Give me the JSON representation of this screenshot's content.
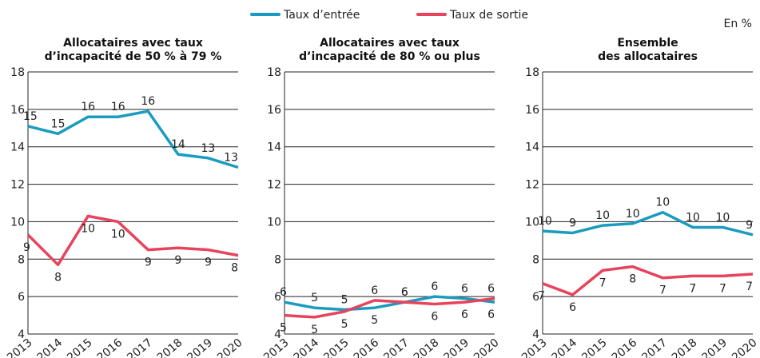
{
  "note": "En %",
  "chart_data": [
    {
      "type": "line",
      "title": "Allocataires avec taux\nd’incapacité de 50 % à 79 %",
      "categories": [
        "2013",
        "2014",
        "2015",
        "2016",
        "2017",
        "2018",
        "2019",
        "2020"
      ],
      "ylim": [
        4,
        18
      ],
      "yticks": [
        4,
        6,
        8,
        10,
        12,
        14,
        16,
        18
      ],
      "grid": true,
      "series": [
        {
          "name": "Taux d’entrée",
          "color": "#1a9bbf",
          "values": [
            15.1,
            14.7,
            15.6,
            15.6,
            15.9,
            13.6,
            13.4,
            12.9
          ],
          "value_labels": [
            "15",
            "15",
            "16",
            "16",
            "16",
            "14",
            "13",
            "13"
          ]
        },
        {
          "name": "Taux de sortie",
          "color": "#e8435c",
          "values": [
            9.3,
            7.7,
            10.3,
            10.0,
            8.5,
            8.6,
            8.5,
            8.2
          ],
          "value_labels": [
            "9",
            "8",
            "10",
            "10",
            "9",
            "9",
            "9",
            "8"
          ]
        }
      ]
    },
    {
      "type": "line",
      "title": "Allocataires avec taux\nd’incapacité de 80 % ou plus",
      "categories": [
        "2013",
        "2014",
        "2015",
        "2016",
        "2017",
        "2018",
        "2019",
        "2020"
      ],
      "ylim": [
        4,
        18
      ],
      "yticks": [
        4,
        6,
        8,
        10,
        12,
        14,
        16,
        18
      ],
      "grid": true,
      "series": [
        {
          "color": "#1a9bbf",
          "values": [
            5.7,
            5.4,
            5.3,
            5.4,
            5.7,
            6.0,
            5.9,
            5.7
          ],
          "value_labels": [
            "6",
            "5",
            "5",
            "5",
            "6",
            "6",
            "6",
            "6"
          ]
        },
        {
          "color": "#e8435c",
          "values": [
            5.0,
            4.9,
            5.2,
            5.8,
            5.7,
            5.6,
            5.7,
            5.9
          ],
          "value_labels": [
            "5",
            "5",
            "5",
            "6",
            "6",
            "6",
            "6",
            "6"
          ]
        }
      ]
    },
    {
      "type": "line",
      "title": "Ensemble\ndes allocataires",
      "categories": [
        "2013",
        "2014",
        "2015",
        "2016",
        "2017",
        "2018",
        "2019",
        "2020"
      ],
      "ylim": [
        4,
        18
      ],
      "yticks": [
        4,
        6,
        8,
        10,
        12,
        14,
        16,
        18
      ],
      "grid": true,
      "series": [
        {
          "color": "#1a9bbf",
          "values": [
            9.5,
            9.4,
            9.8,
            9.9,
            10.5,
            9.7,
            9.7,
            9.3
          ],
          "value_labels": [
            "10",
            "9",
            "10",
            "10",
            "10",
            "10",
            "10",
            "9"
          ]
        },
        {
          "color": "#e8435c",
          "values": [
            6.7,
            6.1,
            7.4,
            7.6,
            7.0,
            7.1,
            7.1,
            7.2
          ],
          "value_labels": [
            "7",
            "6",
            "7",
            "8",
            "7",
            "7",
            "7",
            "7"
          ]
        }
      ]
    }
  ]
}
